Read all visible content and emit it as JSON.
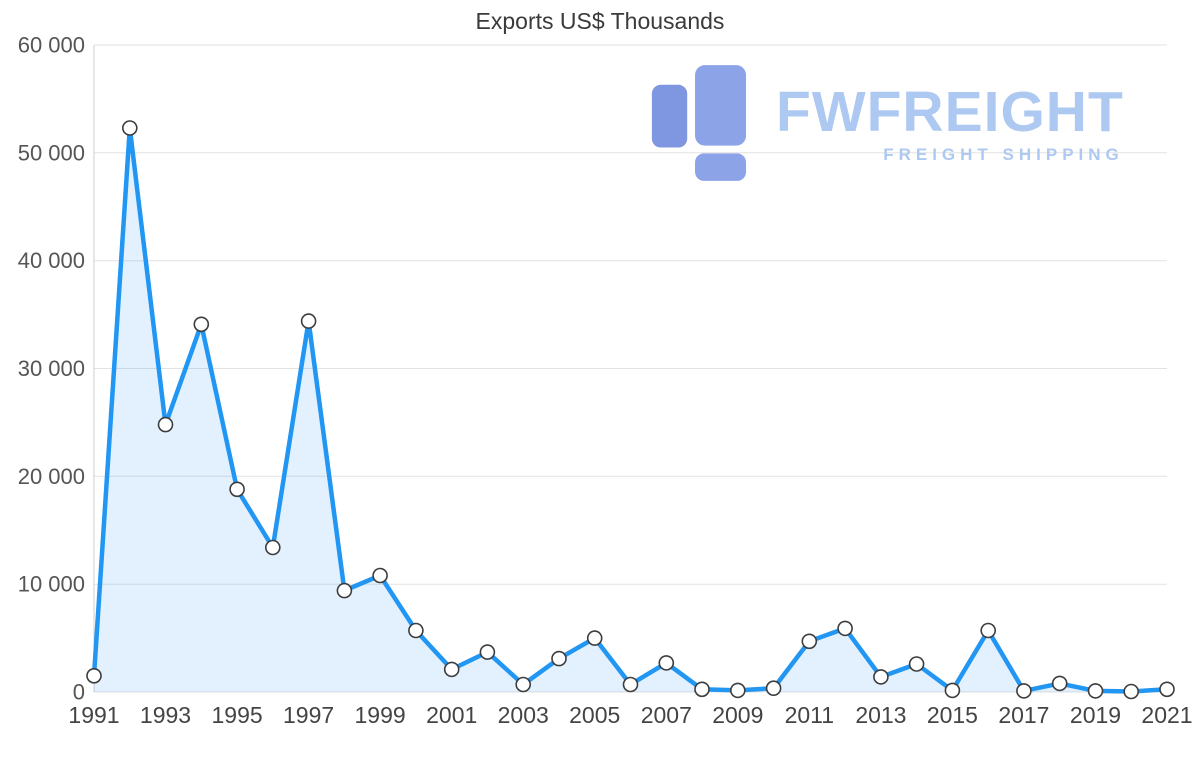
{
  "chart_data": {
    "type": "area",
    "title": "Exports US$ Thousands",
    "x": [
      1991,
      1992,
      1993,
      1994,
      1995,
      1996,
      1997,
      1998,
      1999,
      2000,
      2001,
      2002,
      2003,
      2004,
      2005,
      2006,
      2007,
      2008,
      2009,
      2010,
      2011,
      2012,
      2013,
      2014,
      2015,
      2016,
      2017,
      2018,
      2019,
      2020,
      2021
    ],
    "values": [
      1500,
      52300,
      24800,
      34100,
      18800,
      13400,
      34400,
      9400,
      10800,
      5700,
      2100,
      3700,
      700,
      3100,
      5000,
      700,
      2700,
      250,
      150,
      350,
      4700,
      5900,
      1400,
      2600,
      150,
      5700,
      100,
      800,
      100,
      50,
      250
    ],
    "xlabel": "",
    "ylabel": "",
    "ylim": [
      0,
      60000
    ],
    "yticks": [
      0,
      10000,
      20000,
      30000,
      40000,
      50000,
      60000
    ],
    "ytick_labels": [
      "0",
      "10 000",
      "20 000",
      "30 000",
      "40 000",
      "50 000",
      "60 000"
    ],
    "xticks": [
      1991,
      1993,
      1995,
      1997,
      1999,
      2001,
      2003,
      2005,
      2007,
      2009,
      2011,
      2013,
      2015,
      2017,
      2019,
      2021
    ],
    "grid": true,
    "legend": "none",
    "colors": {
      "line": "#2196f3",
      "fill": "rgba(33,150,243,0.13)",
      "marker_fill": "#ffffff",
      "marker_stroke": "#3d3d3d",
      "grid": "#e2e2e2",
      "axis_line": "#cfcfcf",
      "y_tick_text": "#555555",
      "x_tick_text": "#444444",
      "title": "#3a3a3a"
    }
  },
  "watermark": {
    "brand": "FWFREIGHT",
    "tagline": "FREIGHT SHIPPING",
    "text_color": "#adc9f2",
    "logo_color_left": "#7f97e0",
    "logo_color_right": "#8ca3e8"
  }
}
